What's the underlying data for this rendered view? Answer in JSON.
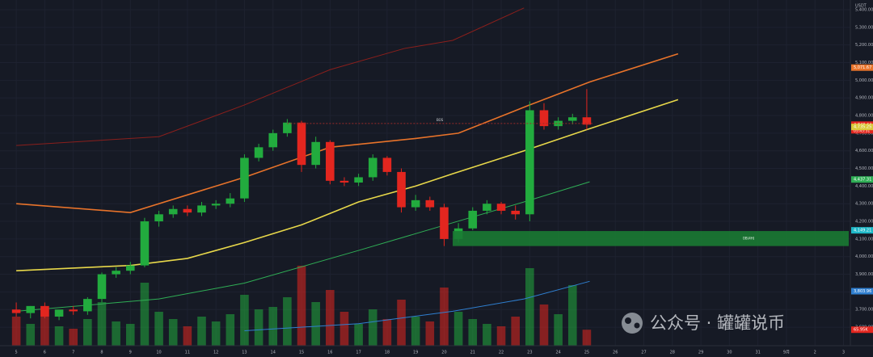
{
  "chart_data": {
    "type": "candlestick",
    "unit": "USDT",
    "x": [
      0,
      0.5,
      1,
      1.5,
      2,
      2.5,
      3,
      3.5,
      4,
      4.5,
      5,
      5.5,
      6,
      6.5,
      7,
      7.5,
      8,
      8.5,
      9,
      9.5,
      10,
      10.5,
      11,
      11.5,
      12,
      12.5,
      13,
      13.5,
      14,
      14.5,
      15,
      15.5,
      16,
      16.5,
      17,
      17.5,
      18,
      18.5,
      19,
      19.5,
      20
    ],
    "open": [
      3700,
      3680,
      3720,
      3660,
      3700,
      3690,
      3760,
      3900,
      3920,
      3950,
      4200,
      4240,
      4270,
      4250,
      4290,
      4300,
      4330,
      4560,
      4620,
      4700,
      4760,
      4520,
      4650,
      4430,
      4420,
      4450,
      4560,
      4480,
      4280,
      4320,
      4280,
      4100,
      4160,
      4260,
      4300,
      4260,
      4240,
      4830,
      4740,
      4770,
      4790
    ],
    "high": [
      3740,
      3720,
      3740,
      3690,
      3720,
      3770,
      3910,
      3940,
      3970,
      4220,
      4260,
      4290,
      4290,
      4310,
      4320,
      4360,
      4580,
      4640,
      4720,
      4780,
      4770,
      4680,
      4660,
      4450,
      4470,
      4580,
      4570,
      4500,
      4350,
      4340,
      4300,
      4190,
      4280,
      4320,
      4310,
      4290,
      4880,
      4870,
      4790,
      4810,
      4950
    ],
    "low": [
      3660,
      3650,
      3650,
      3640,
      3670,
      3670,
      3740,
      3880,
      3900,
      3940,
      4170,
      4220,
      4230,
      4230,
      4270,
      4280,
      4310,
      4540,
      4600,
      4680,
      4480,
      4500,
      4410,
      4400,
      4400,
      4430,
      4460,
      4250,
      4260,
      4260,
      4060,
      4080,
      4150,
      4240,
      4240,
      4210,
      4200,
      4720,
      4720,
      4750,
      4720
    ],
    "close": [
      3680,
      3720,
      3660,
      3700,
      3690,
      3760,
      3900,
      3920,
      3950,
      4200,
      4240,
      4270,
      4250,
      4290,
      4300,
      4330,
      4560,
      4620,
      4700,
      4760,
      4520,
      4650,
      4430,
      4420,
      4450,
      4560,
      4480,
      4280,
      4320,
      4280,
      4100,
      4160,
      4260,
      4300,
      4260,
      4240,
      4830,
      4740,
      4770,
      4790,
      4748.44
    ],
    "volume": [
      120,
      90,
      150,
      80,
      70,
      110,
      180,
      100,
      90,
      260,
      140,
      110,
      80,
      120,
      100,
      130,
      210,
      150,
      160,
      200,
      330,
      180,
      230,
      140,
      90,
      150,
      110,
      190,
      120,
      100,
      240,
      140,
      110,
      90,
      80,
      120,
      320,
      170,
      130,
      250,
      65.95
    ],
    "volume_ylim": [
      0,
      400
    ],
    "up_color": "#22ab3e",
    "down_color": "#e3261f",
    "xlim": [
      -0.57,
      29.24
    ],
    "xticks": [
      {
        "value": 0,
        "label": "5"
      },
      {
        "value": 1,
        "label": "6"
      },
      {
        "value": 2,
        "label": "7"
      },
      {
        "value": 3,
        "label": "8"
      },
      {
        "value": 4,
        "label": "9"
      },
      {
        "value": 5,
        "label": "10"
      },
      {
        "value": 6,
        "label": "11"
      },
      {
        "value": 7,
        "label": "12"
      },
      {
        "value": 8,
        "label": "13"
      },
      {
        "value": 9,
        "label": "14"
      },
      {
        "value": 10,
        "label": "15"
      },
      {
        "value": 11,
        "label": "16"
      },
      {
        "value": 12,
        "label": "17"
      },
      {
        "value": 13,
        "label": "18"
      },
      {
        "value": 14,
        "label": "19"
      },
      {
        "value": 15,
        "label": "20"
      },
      {
        "value": 16,
        "label": "21"
      },
      {
        "value": 17,
        "label": "22"
      },
      {
        "value": 18,
        "label": "23"
      },
      {
        "value": 19,
        "label": "24"
      },
      {
        "value": 20,
        "label": "25"
      },
      {
        "value": 21,
        "label": "26"
      },
      {
        "value": 22,
        "label": "27"
      },
      {
        "value": 23,
        "label": "28"
      },
      {
        "value": 24,
        "label": "29"
      },
      {
        "value": 25,
        "label": "30"
      },
      {
        "value": 26,
        "label": "31"
      },
      {
        "value": 27,
        "label": "9月"
      },
      {
        "value": 28,
        "label": "2"
      },
      {
        "value": 29,
        "label": "3"
      }
    ],
    "ylim": [
      3495,
      5455
    ],
    "yticks": [
      {
        "value": 3600,
        "label": "3,600.00"
      },
      {
        "value": 3700,
        "label": "3,700.00"
      },
      {
        "value": 3800,
        "label": "3,800.00"
      },
      {
        "value": 3900,
        "label": "3,900.00"
      },
      {
        "value": 4000,
        "label": "4,000.00"
      },
      {
        "value": 4100,
        "label": "4,100.00"
      },
      {
        "value": 4200,
        "label": "4,200.00"
      },
      {
        "value": 4300,
        "label": "4,300.00"
      },
      {
        "value": 4400,
        "label": "4,400.00"
      },
      {
        "value": 4500,
        "label": "4,500.00"
      },
      {
        "value": 4600,
        "label": "4,600.00"
      },
      {
        "value": 4700,
        "label": "4,700.00"
      },
      {
        "value": 4800,
        "label": "4,800.00"
      },
      {
        "value": 4900,
        "label": "4,900.00"
      },
      {
        "value": 5000,
        "label": "5,000.00"
      },
      {
        "value": 5100,
        "label": "5,100.00"
      },
      {
        "value": 5200,
        "label": "5,200.00"
      },
      {
        "value": 5300,
        "label": "5,300.00"
      },
      {
        "value": 5400,
        "label": "5,400.00"
      }
    ],
    "grid": true,
    "lines": [
      {
        "color": "#8b1f1c",
        "x": [
          0,
          5,
          8,
          11,
          13.6,
          15.3,
          17.8
        ],
        "values": [
          4630,
          4680,
          4860,
          5060,
          5180,
          5226,
          5410
        ]
      },
      {
        "color": "#e8732a",
        "x": [
          0,
          4,
          8,
          11,
          14,
          15.5,
          18,
          20.1,
          23.2
        ],
        "values": [
          4300,
          4250,
          4450,
          4620,
          4670,
          4700,
          4860,
          4990,
          5150
        ]
      },
      {
        "color": "#e8d84a",
        "x": [
          0,
          4,
          6,
          8,
          10,
          12,
          14,
          15.3,
          17.8,
          20,
          23.2
        ],
        "values": [
          3920,
          3950,
          3990,
          4080,
          4180,
          4310,
          4400,
          4470,
          4600,
          4720,
          4890
        ]
      },
      {
        "color": "#2fae55",
        "x": [
          0,
          5,
          8,
          12,
          14.9,
          17.8,
          20.1
        ],
        "values": [
          3690,
          3760,
          3850,
          4035,
          4173,
          4310,
          4424
        ]
      },
      {
        "color": "#2f7fd0",
        "x": [
          8,
          12,
          15.3,
          17.8,
          20.1
        ],
        "values": [
          3580,
          3620,
          3690,
          3760,
          3860
        ]
      }
    ],
    "price_labels": [
      {
        "value": 5071.67,
        "label": "5,071.67",
        "color": "#e8732a"
      },
      {
        "value": 4748.44,
        "label": "4,748.44",
        "color": "#e3261f"
      },
      {
        "value": 4735.25,
        "label": "4,735.25",
        "color": "#d9c93a"
      },
      {
        "value": 4437.31,
        "label": "4,437.31",
        "color": "#2fae55"
      },
      {
        "value": 4149.21,
        "label": "4,149.21",
        "color": "#1fb8c8"
      },
      {
        "value": 3803.96,
        "label": "3,803.96",
        "color": "#2f7fd0"
      }
    ],
    "countdown": "05:45:31",
    "volume_label": {
      "value": 65.95,
      "label": "65.95K",
      "color": "#e3261f"
    },
    "zone": {
      "label": "OB(4H)",
      "x_start": 15.3,
      "top": 4145,
      "bottom": 4060,
      "color": "#1a7a33"
    },
    "level": {
      "label": "BOS",
      "value": 4755,
      "x_start": 9.5,
      "x_end": 20.2,
      "color": "#9b2a2a"
    },
    "watermark": "公众号 · 罐罐说币"
  }
}
